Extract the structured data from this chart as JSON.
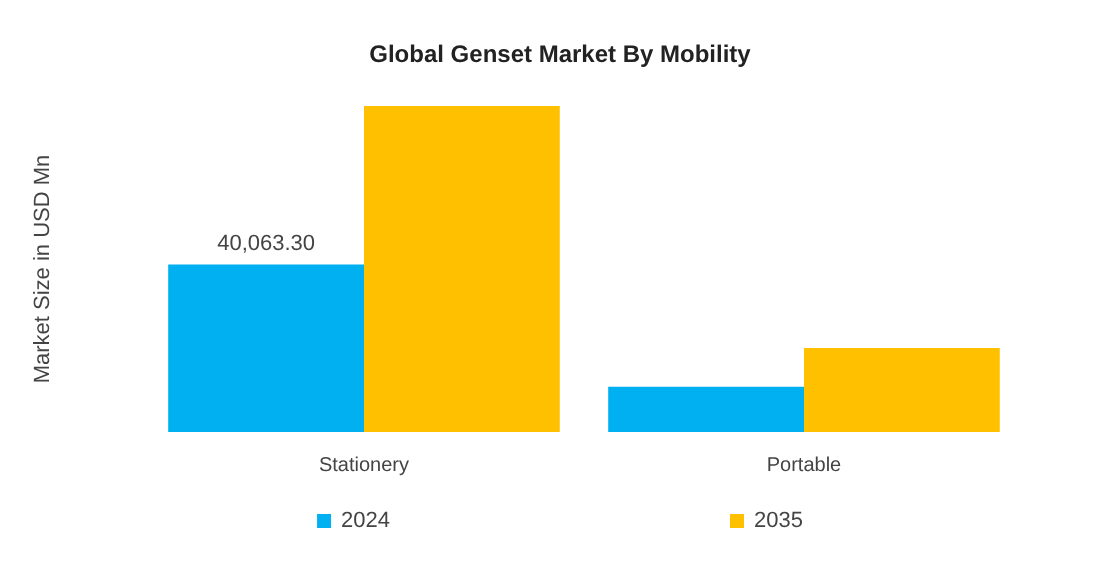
{
  "chart_data": {
    "type": "bar",
    "title": "Global Genset Market By Mobility",
    "ylabel": "Market Size in USD Mn",
    "tick_labels": "x",
    "categories": [
      "Stationery",
      "Portable"
    ],
    "series": [
      {
        "name": "2024",
        "color": "#00b0f0",
        "values": [
          40063.3,
          10800
        ],
        "value_labels": [
          "40,063.30",
          null
        ]
      },
      {
        "name": "2035",
        "color": "#ffc000",
        "values": [
          78000,
          20100
        ]
      }
    ],
    "legend": "bottom"
  }
}
